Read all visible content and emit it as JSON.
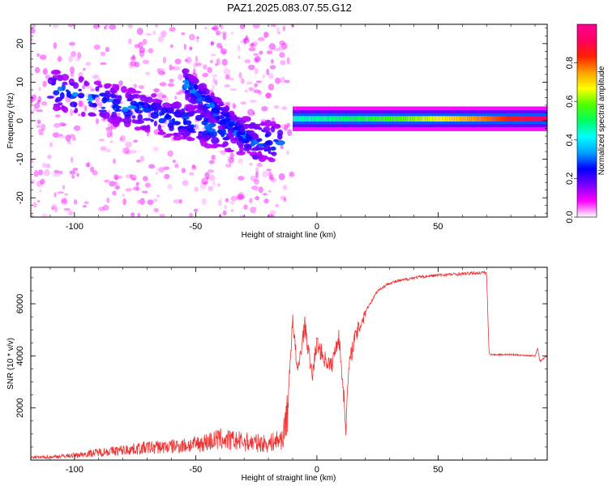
{
  "title": "PAZ1.2025.083.07.55.G12",
  "chart_data": [
    {
      "type": "heatmap",
      "name": "spectrogram",
      "xlabel": "Height of straight line (km)",
      "ylabel": "Frequency (Hz)",
      "xlim": [
        -118,
        95
      ],
      "ylim": [
        -25,
        25
      ],
      "xticks": [
        -100,
        -50,
        0,
        50
      ],
      "yticks": [
        -20,
        -10,
        0,
        10,
        20
      ],
      "colorbar": {
        "label": "Normalized spectral amplitude",
        "range": [
          0,
          1
        ],
        "ticks": [
          "0.0",
          "0.2",
          "0.4",
          "0.6",
          "0.8"
        ],
        "colormap": [
          "#ffffff",
          "#ff00ff",
          "#7b00ff",
          "#0000ff",
          "#00a0ff",
          "#00ffff",
          "#00ff60",
          "#50ff00",
          "#ffff00",
          "#ffa000",
          "#ff2000",
          "#ff0060",
          "#ff0090"
        ]
      },
      "features": [
        {
          "x": [
            -118,
            -10
          ],
          "description_level": "scattered low amplitude",
          "freq_center_start": 8,
          "freq_center_end": -6
        },
        {
          "x": [
            -55,
            -25
          ],
          "band": "secondary descending branch",
          "freq_center_start": 10,
          "freq_center_end": -7
        },
        {
          "x": [
            -10,
            95
          ],
          "band": "narrow carrier near 0 Hz",
          "freq_center": 0.5,
          "amplitude_start": 0.45,
          "amplitude_end": 0.95
        }
      ],
      "grid": false
    },
    {
      "type": "line",
      "name": "snr",
      "xlabel": "Height of straight line (km)",
      "ylabel": "SNR (10 * v/v)",
      "xlim": [
        -118,
        95
      ],
      "ylim": [
        0,
        7400
      ],
      "xticks": [
        -100,
        -50,
        0,
        50
      ],
      "yticks": [
        2000,
        4000,
        6000
      ],
      "color": "#ee3333",
      "x": [
        -118,
        -110,
        -100,
        -90,
        -80,
        -70,
        -60,
        -50,
        -40,
        -30,
        -20,
        -14,
        -12,
        -10,
        -8,
        -5,
        -2,
        0,
        3,
        6,
        9,
        11,
        12,
        13,
        15,
        20,
        25,
        30,
        40,
        50,
        60,
        70,
        71,
        72,
        80,
        90,
        91,
        92,
        95
      ],
      "values": [
        100,
        120,
        180,
        300,
        380,
        480,
        520,
        600,
        800,
        700,
        620,
        850,
        2000,
        5500,
        3300,
        5200,
        3200,
        4500,
        3900,
        3600,
        4800,
        2600,
        1200,
        3400,
        4500,
        5700,
        6500,
        6800,
        7000,
        7100,
        7150,
        7200,
        4100,
        4050,
        4050,
        4000,
        4300,
        3800,
        4000
      ],
      "grid": false
    }
  ]
}
